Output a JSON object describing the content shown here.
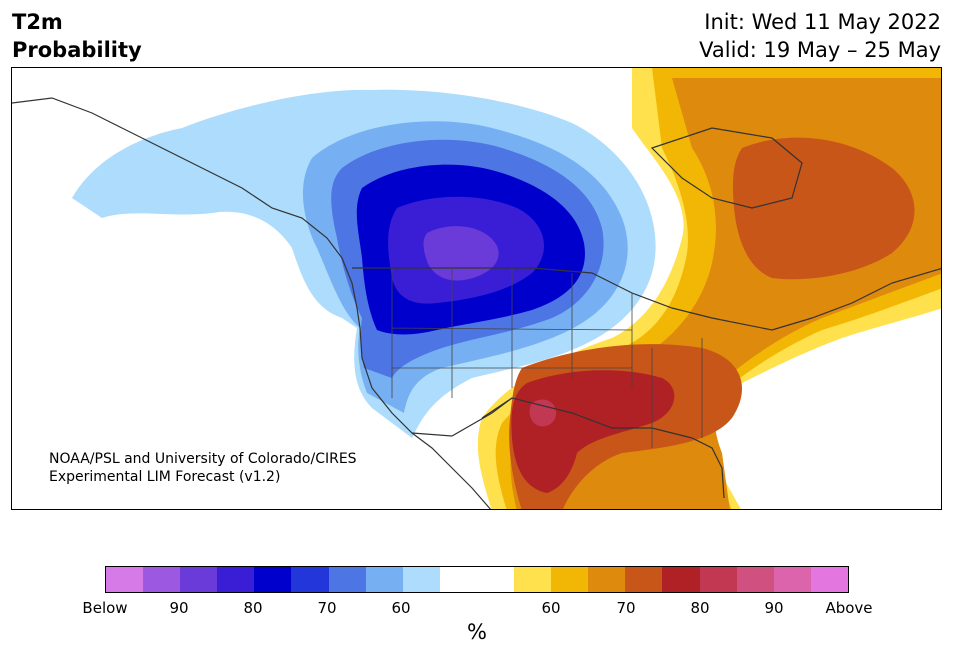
{
  "header": {
    "variable": "T2m",
    "product": "Probability",
    "init": "Init: Wed 11 May 2022",
    "valid": "Valid: 19 May – 25 May"
  },
  "credit": {
    "line1": "NOAA/PSL and University of Colorado/CIRES",
    "line2": "Experimental LIM Forecast (v1.2)"
  },
  "colorbar": {
    "unit": "%",
    "colors": [
      "#d67ae8",
      "#9c58e0",
      "#6b3bd9",
      "#3a1ed6",
      "#0000cd",
      "#2236d9",
      "#4d75e3",
      "#76b0f2",
      "#addcfc",
      "#ffffff",
      "#ffffff",
      "#ffe04d",
      "#f2b705",
      "#dd8a0d",
      "#c85618",
      "#b02126",
      "#c23752",
      "#d05080",
      "#db64ac",
      "#e377df"
    ],
    "ticks": [
      "Below",
      "90",
      "80",
      "70",
      "60",
      "60",
      "70",
      "80",
      "90",
      "Above"
    ]
  },
  "map_legend": {
    "below_label": "Below",
    "above_label": "Above"
  }
}
